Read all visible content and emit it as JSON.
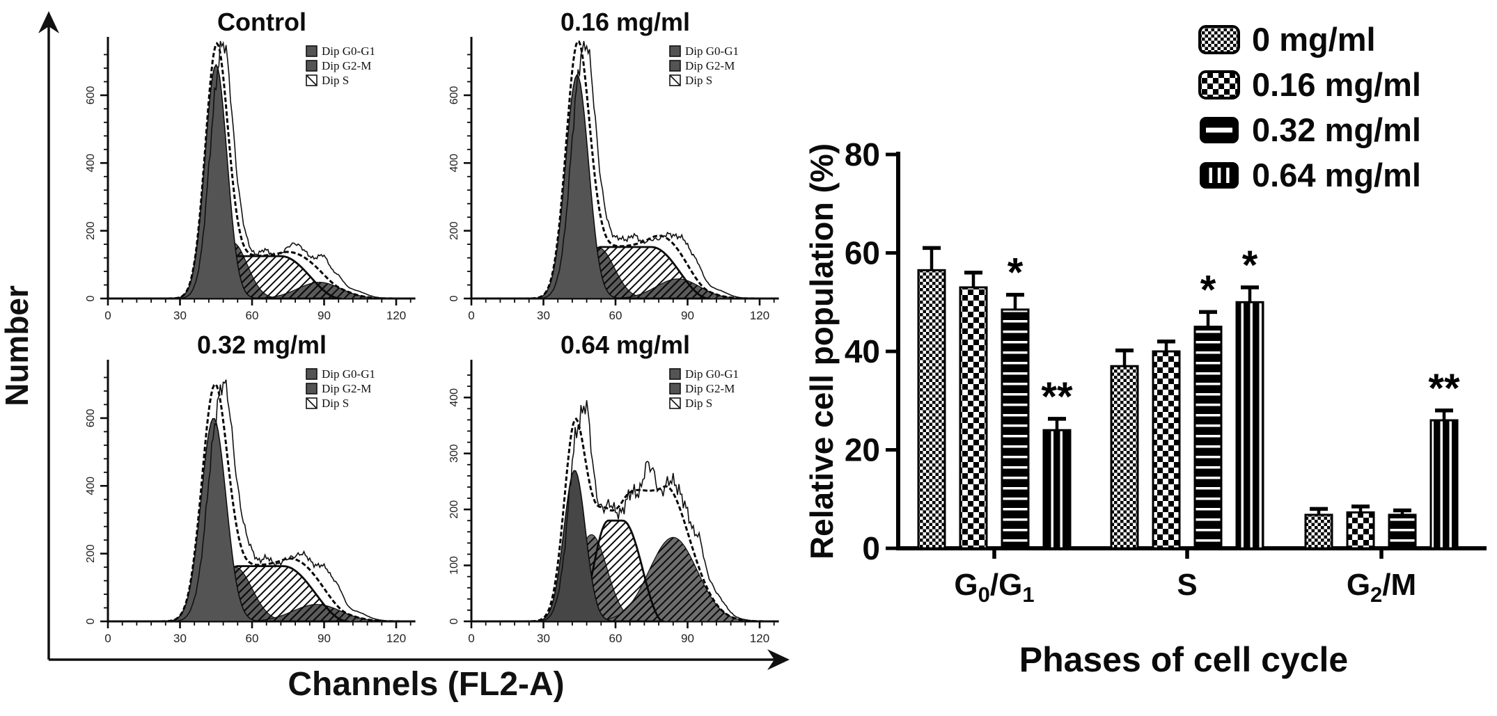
{
  "chart_data": {
    "flow": {
      "type": "area",
      "ylabel": "Number",
      "xlabel": "Channels (FL2-A)",
      "legend": [
        "Dip G0-G1",
        "Dip G2-M",
        "Dip S"
      ],
      "legend_swatches": [
        "gray-square",
        "gray-square",
        "hatch-square"
      ],
      "x_major_ticks": [
        0,
        30,
        60,
        90,
        120
      ],
      "x_minor_step": 6,
      "xlim": [
        0,
        128
      ],
      "colors": {
        "g1_fill": "#545454",
        "dome_fill": "#5b5b5b",
        "dome_fill_light": "#6d6d6d",
        "outline": "#0a0a0a"
      },
      "panels": [
        {
          "title": "Control",
          "y_major_ticks": [
            0,
            200,
            400,
            600
          ],
          "y_minor_step": 40,
          "ymax": 760,
          "dark_g1": false,
          "g1": {
            "c": 45,
            "s": 4.6,
            "A": 690
          },
          "dome": {
            "c": 52,
            "s": 6.0,
            "A": 165
          },
          "g2m": {
            "c": 88,
            "s": 9.0,
            "A": 48
          },
          "sphase": {
            "xs": 40,
            "xr": 54,
            "xf": 72,
            "xe": 97,
            "h": 125
          },
          "extra": {
            "c": 45,
            "s": 5.0,
            "A": 25
          },
          "raw": {
            "shift": 2.2,
            "namp": 0.06,
            "phase": 0.4,
            "bumps": [
              {
                "c": 65,
                "s": 2,
                "A": 15
              },
              {
                "c": 78,
                "s": 2.5,
                "A": 28
              },
              {
                "c": 90,
                "s": 2.5,
                "A": 38
              },
              {
                "c": 96,
                "s": 2,
                "A": 22
              },
              {
                "c": 104,
                "s": 4,
                "A": 8
              }
            ]
          }
        },
        {
          "title": "0.16 mg/ml",
          "y_major_ticks": [
            0,
            200,
            400,
            600
          ],
          "y_minor_step": 40,
          "ymax": 760,
          "dark_g1": false,
          "g1": {
            "c": 44,
            "s": 4.8,
            "A": 660
          },
          "dome": {
            "c": 53,
            "s": 6.5,
            "A": 150
          },
          "g2m": {
            "c": 86,
            "s": 9.0,
            "A": 58
          },
          "sphase": {
            "xs": 38,
            "xr": 54,
            "xf": 75,
            "xe": 99,
            "h": 152
          },
          "extra": {
            "c": 44,
            "s": 5.0,
            "A": 50
          },
          "raw": {
            "shift": 2.5,
            "namp": 0.06,
            "phase": 1.3,
            "bumps": [
              {
                "c": 62,
                "s": 2,
                "A": 25
              },
              {
                "c": 68,
                "s": 2,
                "A": 30
              },
              {
                "c": 88,
                "s": 2.5,
                "A": 30
              },
              {
                "c": 94,
                "s": 2,
                "A": 28
              },
              {
                "c": 103,
                "s": 4,
                "A": 10
              }
            ]
          }
        },
        {
          "title": "0.32 mg/ml",
          "y_major_ticks": [
            0,
            200,
            400,
            600
          ],
          "y_minor_step": 40,
          "ymax": 760,
          "dark_g1": false,
          "g1": {
            "c": 44,
            "s": 5.2,
            "A": 600
          },
          "dome": {
            "c": 53,
            "s": 7.0,
            "A": 160
          },
          "g2m": {
            "c": 87,
            "s": 10.0,
            "A": 50
          },
          "sphase": {
            "xs": 38,
            "xr": 54,
            "xf": 73,
            "xe": 100,
            "h": 163
          },
          "extra": {
            "c": 44,
            "s": 5.0,
            "A": 45
          },
          "raw": {
            "shift": 3.0,
            "namp": 0.06,
            "phase": 2.1,
            "bumps": [
              {
                "c": 60,
                "s": 2,
                "A": 20
              },
              {
                "c": 66,
                "s": 2,
                "A": 18
              },
              {
                "c": 80,
                "s": 3,
                "A": 15
              },
              {
                "c": 91,
                "s": 3,
                "A": 35
              },
              {
                "c": 96,
                "s": 2,
                "A": 28
              },
              {
                "c": 104,
                "s": 4,
                "A": 10
              }
            ]
          }
        },
        {
          "title": "0.64 mg/ml",
          "y_major_ticks": [
            0,
            100,
            200,
            300,
            400
          ],
          "y_minor_step": 20,
          "ymax": 460,
          "dark_g1": true,
          "g1": {
            "c": 43,
            "s": 4.5,
            "A": 270
          },
          "dome": {
            "c": 50,
            "s": 6.5,
            "A": 155
          },
          "g2m": {
            "c": 84,
            "s": 10.0,
            "A": 150
          },
          "sphase": {
            "xs": 44,
            "xr": 57,
            "xf": 63,
            "xe": 80,
            "h": 180
          },
          "extra": {
            "c": 45.5,
            "s": 5.5,
            "A": 100
          },
          "extra2": {
            "c": 78,
            "s": 8.0,
            "A": 105
          },
          "raw": {
            "shift": 2.0,
            "namp": 0.08,
            "phase": 3.0,
            "bumps": [
              {
                "c": 48,
                "s": 1.5,
                "A": 55
              },
              {
                "c": 73,
                "s": 1.5,
                "A": 40
              },
              {
                "c": 76,
                "s": 1.2,
                "A": 25
              },
              {
                "c": 86,
                "s": 2,
                "A": 15
              },
              {
                "c": 95,
                "s": 1.5,
                "A": 35
              },
              {
                "c": 103,
                "s": 3,
                "A": 10
              }
            ]
          }
        }
      ]
    },
    "bar_chart": {
      "type": "bar",
      "title": "",
      "xlabel": "Phases of cell cycle",
      "ylabel": "Relative cell population (%)",
      "ylim": [
        0,
        80
      ],
      "yticks": [
        0,
        20,
        40,
        60,
        80
      ],
      "grid": false,
      "legend_position": "top-right",
      "categories": [
        "G0/G1",
        "S",
        "G2/M"
      ],
      "category_parts": [
        [
          {
            "t": "G",
            "sub": false
          },
          {
            "t": "0",
            "sub": true
          },
          {
            "t": "/G",
            "sub": false
          },
          {
            "t": "1",
            "sub": true
          }
        ],
        [
          {
            "t": "S",
            "sub": false
          }
        ],
        [
          {
            "t": "G",
            "sub": false
          },
          {
            "t": "2",
            "sub": true
          },
          {
            "t": "/M",
            "sub": false
          }
        ]
      ],
      "series": [
        {
          "name": "0 mg/ml",
          "pattern": "fine-check",
          "values": [
            56.5,
            37,
            6.8
          ],
          "errors": [
            4.5,
            3.2,
            1.2
          ],
          "sig": [
            "",
            "",
            ""
          ]
        },
        {
          "name": "0.16 mg/ml",
          "pattern": "coarse-check",
          "values": [
            53,
            40,
            7.3
          ],
          "errors": [
            3,
            2,
            1.2
          ],
          "sig": [
            "",
            "",
            ""
          ]
        },
        {
          "name": "0.32 mg/ml",
          "pattern": "h-stripe",
          "values": [
            48.5,
            45,
            6.8
          ],
          "errors": [
            3,
            3,
            0.9
          ],
          "sig": [
            "*",
            "*",
            ""
          ]
        },
        {
          "name": "0.64 mg/ml",
          "pattern": "v-stripe",
          "values": [
            24,
            50,
            26
          ],
          "errors": [
            2.3,
            3,
            2
          ],
          "sig": [
            "**",
            "*",
            "**"
          ]
        }
      ],
      "colors": {
        "bar": "#000000",
        "text": "#0a0a0a"
      }
    }
  }
}
